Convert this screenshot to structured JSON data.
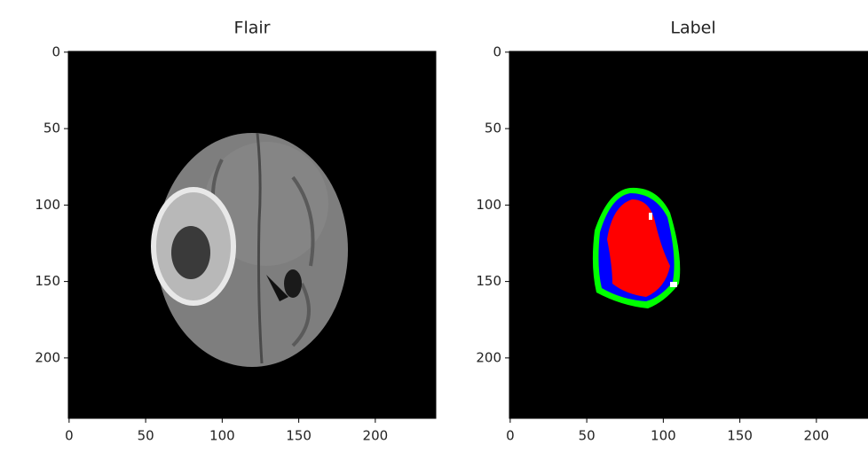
{
  "chart_data": [
    {
      "type": "image",
      "title": "Flair",
      "xlim": [
        -0.5,
        239.5
      ],
      "ylim": [
        239.5,
        -0.5
      ],
      "xticks": [
        0,
        50,
        100,
        150,
        200
      ],
      "yticks": [
        0,
        50,
        100,
        150,
        200
      ]
    },
    {
      "type": "image",
      "title": "Label",
      "xlim": [
        -0.5,
        239.5
      ],
      "ylim": [
        239.5,
        -0.5
      ],
      "xticks": [
        0,
        50,
        100,
        150,
        200
      ],
      "yticks": [
        0,
        50,
        100,
        150,
        200
      ]
    }
  ]
}
